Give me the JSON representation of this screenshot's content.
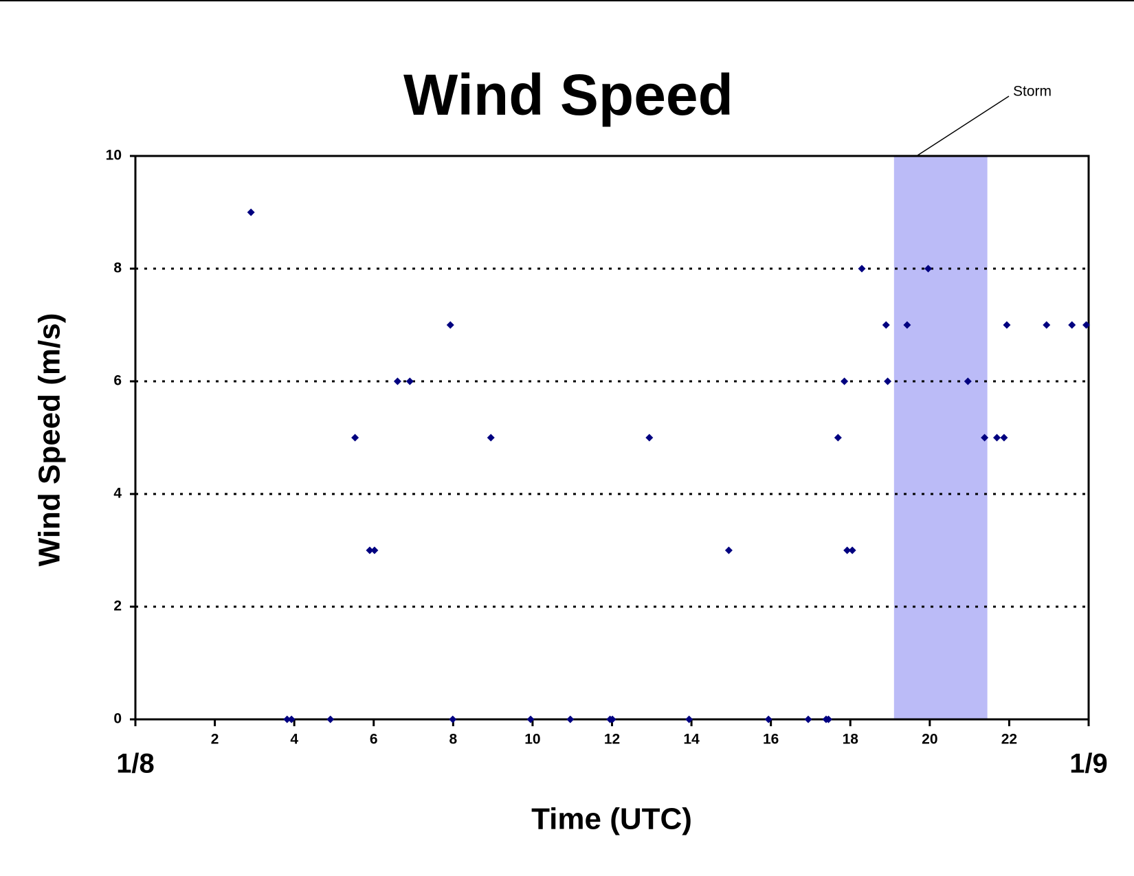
{
  "chart_data": {
    "type": "scatter",
    "title": "Wind Speed",
    "x_label": "Time (UTC)",
    "y_label": "Wind Speed (m/s)",
    "color": "#000080",
    "grid": true,
    "xlim": [
      0,
      24
    ],
    "ylim": [
      0,
      10
    ],
    "xticks": [
      {
        "value": 0,
        "label": "1/8"
      },
      2,
      4,
      6,
      8,
      10,
      12,
      14,
      16,
      18,
      20,
      22,
      {
        "value": 24,
        "label": "1/9"
      }
    ],
    "yticks": [
      0,
      2,
      4,
      6,
      8,
      10
    ],
    "shaded_region": {
      "label": "Storm",
      "x_start": 19.1,
      "x_end": 21.45,
      "color": "#bbbbf7"
    },
    "x": [
      2.91,
      3.82,
      3.93,
      4.91,
      5.53,
      5.9,
      6.02,
      6.6,
      6.91,
      7.93,
      7.99,
      8.95,
      9.95,
      10.95,
      11.95,
      12.01,
      12.94,
      13.94,
      14.94,
      15.94,
      16.94,
      17.39,
      17.45,
      17.69,
      17.85,
      17.92,
      18.05,
      18.29,
      18.9,
      18.94,
      19.43,
      19.96,
      20.96,
      21.38,
      21.69,
      21.87,
      21.94,
      22.94,
      23.58,
      23.94
    ],
    "values": [
      9,
      0,
      0,
      0,
      5,
      3,
      3,
      6,
      6,
      7,
      0,
      5,
      0,
      0,
      0,
      0,
      5,
      0,
      3,
      0,
      0,
      0,
      0,
      5,
      6,
      3,
      3,
      8,
      7,
      6,
      7,
      8,
      6,
      5,
      5,
      5,
      7,
      7,
      7,
      7
    ]
  }
}
